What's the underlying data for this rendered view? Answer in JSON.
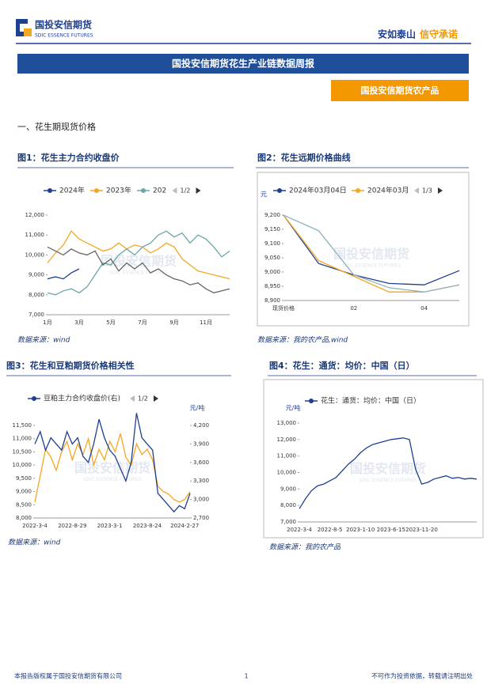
{
  "header": {
    "logo_cn": "国投安信期货",
    "logo_en": "SDIC ESSENCE FUTURES",
    "slogan_1": "安如泰山",
    "slogan_2": "信守承诺"
  },
  "banner": "国投安信期货花生产业链数据周报",
  "tag": "国投安信期货农产品",
  "section": "一、花生期现货价格",
  "watermark": {
    "cn": "国投安信期货",
    "en": "SDIC ESSENCE FUTURES"
  },
  "chart_data": [
    {
      "type": "line",
      "title": "图1：花生主力合约收盘价",
      "pager": "1/2",
      "categories": [
        "1月",
        null,
        null,
        null,
        "3月",
        null,
        null,
        null,
        "5月",
        null,
        null,
        null,
        "7月",
        null,
        null,
        null,
        "9月",
        null,
        null,
        null,
        "11月",
        null,
        null,
        null
      ],
      "series": [
        {
          "name": "2024年",
          "color": "#1f3f8f",
          "values": [
            8800,
            8900,
            8800,
            9100,
            9300,
            null,
            null,
            null,
            null,
            null,
            null,
            null,
            null,
            null,
            null,
            null,
            null,
            null,
            null,
            null,
            null,
            null,
            null,
            null
          ]
        },
        {
          "name": "2023年",
          "color": "#f5a623",
          "values": [
            9600,
            10100,
            10500,
            11200,
            10800,
            10600,
            10400,
            10200,
            10300,
            10600,
            10300,
            10500,
            10400,
            10100,
            10300,
            10600,
            10400,
            9800,
            9500,
            9200,
            9100,
            9000,
            8900,
            8800
          ]
        },
        {
          "name": "202",
          "color": "#6aa6a8",
          "values": [
            8100,
            8000,
            8200,
            8300,
            8100,
            8400,
            9000,
            9600,
            9500,
            10000,
            10300,
            10000,
            10400,
            10600,
            11000,
            11200,
            10900,
            11100,
            10600,
            11000,
            10800,
            10400,
            9900,
            10200
          ]
        },
        {
          "color": "#666666",
          "values": [
            10400,
            10200,
            10000,
            10300,
            10100,
            10000,
            10200,
            9500,
            9800,
            9200,
            9600,
            9300,
            9600,
            9100,
            9300,
            9000,
            8800,
            8700,
            8500,
            8600,
            8300,
            8100,
            8200,
            8300
          ]
        }
      ],
      "ylim": [
        7000,
        12000
      ],
      "yticks": [
        {
          "value": 7000,
          "label": "7,000"
        },
        {
          "value": 8000,
          "label": "8,000"
        },
        {
          "value": 9000,
          "label": "9,000"
        },
        {
          "value": 10000,
          "label": "10,000"
        },
        {
          "value": 11000,
          "label": "11,000"
        },
        {
          "value": 12000,
          "label": "12,000"
        }
      ],
      "source": "数据来源：wind"
    },
    {
      "type": "line",
      "title": "图2：花生远期价格曲线",
      "pager": "1/3",
      "y_unit": "元",
      "categories": [
        "现货价格",
        null,
        "02",
        null,
        "04",
        null
      ],
      "series": [
        {
          "name": "2024年03月04日",
          "color": "#1f3f8f",
          "values": [
            9200,
            9030,
            8990,
            8960,
            8955,
            9005
          ]
        },
        {
          "name": "2024年03月",
          "color": "#f5a623",
          "values": [
            9200,
            9040,
            8985,
            8930,
            8930,
            8955
          ]
        },
        {
          "color": "#8fb0c0",
          "values": [
            9200,
            9145,
            8990,
            8945,
            8930,
            8955
          ]
        }
      ],
      "ylim": [
        8900,
        9200
      ],
      "yticks": [
        {
          "value": 8900,
          "label": "8,900"
        },
        {
          "value": 8950,
          "label": "8,950"
        },
        {
          "value": 9000,
          "label": "9,000"
        },
        {
          "value": 9050,
          "label": "9,050"
        },
        {
          "value": 9100,
          "label": "9,100"
        },
        {
          "value": 9150,
          "label": "9,150"
        },
        {
          "value": 9200,
          "label": "9,200"
        }
      ],
      "source": "数据来源：我的农产品,wind"
    },
    {
      "type": "line",
      "title": "图3：花生和豆粕期货价格相关性",
      "pager": "1/2",
      "y_unit": "元/吨",
      "categories": [
        "2022-3-4",
        null,
        null,
        null,
        null,
        null,
        null,
        "2022-8-29",
        null,
        null,
        null,
        null,
        null,
        null,
        "2023-3-1",
        null,
        null,
        null,
        null,
        null,
        null,
        "2023-8-24",
        null,
        null,
        null,
        null,
        null,
        null,
        "2024-2-27",
        null
      ],
      "series": [
        {
          "color": "#f5a623",
          "values": [
            8600,
            9600,
            10600,
            10300,
            9800,
            10500,
            10900,
            10200,
            10800,
            10400,
            11000,
            10000,
            10600,
            10200,
            10900,
            10500,
            11200,
            10300,
            10000,
            10800,
            10400,
            10600,
            10200,
            9200,
            9000,
            8900,
            8700,
            8600,
            8700,
            9000
          ]
        },
        {
          "name": "豆粕主力合约收盘价(右)",
          "color": "#1f3f8f",
          "axis": "y2",
          "values": [
            3900,
            4100,
            3800,
            4000,
            3900,
            3800,
            4100,
            3900,
            4000,
            3700,
            3600,
            3900,
            4300,
            4000,
            3800,
            3700,
            3500,
            3300,
            3600,
            4400,
            4000,
            3900,
            3800,
            3100,
            3000,
            2900,
            2800,
            2900,
            2850,
            3100
          ]
        }
      ],
      "ylim": [
        8000,
        11500
      ],
      "yticks": [
        {
          "value": 8000,
          "label": "8,000"
        },
        {
          "value": 8500,
          "label": "8,500"
        },
        {
          "value": 9000,
          "label": "9,000"
        },
        {
          "value": 9500,
          "label": "9,500"
        },
        {
          "value": 10000,
          "label": "10,000"
        },
        {
          "value": 10500,
          "label": "10,500"
        },
        {
          "value": 11000,
          "label": "11,000"
        },
        {
          "value": 11500,
          "label": "11,500"
        }
      ],
      "y2lim": [
        2700,
        4200
      ],
      "y2ticks": [
        {
          "value": 2700,
          "label": "2,700"
        },
        {
          "value": 3000,
          "label": "3,000"
        },
        {
          "value": 3300,
          "label": "3,300"
        },
        {
          "value": 3600,
          "label": "3,600"
        },
        {
          "value": 3900,
          "label": "3,900"
        },
        {
          "value": 4200,
          "label": "4,200"
        }
      ],
      "source": "数据来源：wind"
    },
    {
      "type": "line",
      "title": "图4：花生：通货：均价：中国（日）",
      "y_unit": "元/吨",
      "categories": [
        "2022-3-4",
        null,
        null,
        null,
        null,
        "2022-8-5",
        null,
        null,
        null,
        null,
        "2023-1-10",
        null,
        null,
        null,
        null,
        "2023-6-15",
        null,
        null,
        null,
        null,
        "2023-11-20",
        null,
        null,
        null,
        null,
        null,
        null,
        null,
        null,
        null
      ],
      "series": [
        {
          "name": "花生：通货：均价：中国（日）",
          "color": "#1f3f8f",
          "values": [
            7800,
            8400,
            8900,
            9200,
            9300,
            9500,
            9700,
            10100,
            10500,
            10800,
            11200,
            11500,
            11700,
            11800,
            11900,
            12000,
            12050,
            12100,
            12000,
            10200,
            9300,
            9400,
            9600,
            9700,
            9800,
            9650,
            9700,
            9600,
            9650,
            9600
          ]
        }
      ],
      "ylim": [
        7000,
        13000
      ],
      "yticks": [
        {
          "value": 7000,
          "label": "7,000"
        },
        {
          "value": 8000,
          "label": "8,000"
        },
        {
          "value": 9000,
          "label": "9,000"
        },
        {
          "value": 10000,
          "label": "10,000"
        },
        {
          "value": 11000,
          "label": "11,000"
        },
        {
          "value": 12000,
          "label": "12,000"
        },
        {
          "value": 13000,
          "label": "13,000"
        }
      ],
      "source": "数据来源：我的农产品"
    }
  ],
  "footer": {
    "left": "本报告版权属于国投安信期货有限公司",
    "page": "1",
    "right": "不可作为投资依据，转载请注明出处"
  }
}
